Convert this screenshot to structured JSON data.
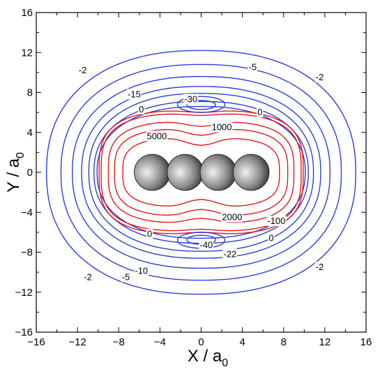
{
  "chart_data": {
    "type": "contour",
    "title": "",
    "xlabel": "X / a",
    "xlabel_sub": "0",
    "ylabel": "Y / a",
    "ylabel_sub": "0",
    "xlim": [
      -16,
      16
    ],
    "ylim": [
      -16,
      16
    ],
    "xticks": [
      "−16",
      "−12",
      "−8",
      "−4",
      "0",
      "4",
      "8",
      "12",
      "16"
    ],
    "xtick_values": [
      -16,
      -12,
      -8,
      -4,
      0,
      4,
      8,
      12,
      16
    ],
    "yticks": [
      "16",
      "12",
      "8",
      "4",
      "0",
      "−4",
      "−8",
      "−12",
      "−16"
    ],
    "ytick_values": [
      16,
      12,
      8,
      4,
      0,
      -4,
      -8,
      -12,
      -16
    ],
    "grid": false,
    "colors": {
      "negative": "#2a3fd6",
      "positive": "#e01818"
    },
    "contours_negative": [
      {
        "a": 15.0,
        "b": 12.2
      },
      {
        "a": 13.6,
        "b": 10.8
      },
      {
        "a": 12.5,
        "b": 9.6
      },
      {
        "a": 11.6,
        "b": 8.6
      },
      {
        "a": 10.9,
        "b": 7.9
      },
      {
        "a": 10.4,
        "b": 7.1
      },
      {
        "a": 10.1,
        "b": 6.6
      }
    ],
    "contours_positive": [
      {
        "a": 9.9,
        "b": 6.2,
        "dip": 0.2
      },
      {
        "a": 9.7,
        "b": 5.9,
        "dip": 0.2
      },
      {
        "a": 9.0,
        "b": 5.1,
        "dip": 0.5
      },
      {
        "a": 8.4,
        "b": 4.4,
        "dip": 0.7
      },
      {
        "a": 7.6,
        "b": 3.5,
        "dip": 0.8
      }
    ],
    "lobes": [
      {
        "cx": 0,
        "cy": 6.8,
        "rx": 2.3,
        "ry": 0.8
      },
      {
        "cx": 0,
        "cy": 6.75,
        "rx": 1.4,
        "ry": 0.45
      },
      {
        "cx": 0,
        "cy": -6.8,
        "rx": 2.3,
        "ry": 0.8
      },
      {
        "cx": 0,
        "cy": -6.75,
        "rx": 1.4,
        "ry": 0.45
      }
    ],
    "contour_labels": [
      {
        "text": "-2",
        "x": -11.5,
        "y": 10.2
      },
      {
        "text": "-5",
        "x": 5.0,
        "y": 10.5
      },
      {
        "text": "-2",
        "x": 11.5,
        "y": 9.5
      },
      {
        "text": "-15",
        "x": -6.5,
        "y": 7.8
      },
      {
        "text": "-30",
        "x": -1.0,
        "y": 7.3
      },
      {
        "text": "0",
        "x": -5.8,
        "y": 6.3
      },
      {
        "text": "0",
        "x": 5.7,
        "y": 6.0
      },
      {
        "text": "1000",
        "x": 2.0,
        "y": 4.5
      },
      {
        "text": "5000",
        "x": -4.3,
        "y": 3.6
      },
      {
        "text": "2000",
        "x": 3.0,
        "y": -4.5
      },
      {
        "text": "-100",
        "x": 7.3,
        "y": -4.9
      },
      {
        "text": "0",
        "x": 6.8,
        "y": -6.6
      },
      {
        "text": "0",
        "x": -5.0,
        "y": -6.2
      },
      {
        "text": "-40",
        "x": 0.5,
        "y": -7.3
      },
      {
        "text": "-22",
        "x": 2.8,
        "y": -8.2
      },
      {
        "text": "-10",
        "x": -5.8,
        "y": -9.9
      },
      {
        "text": "-5",
        "x": -7.3,
        "y": -10.5
      },
      {
        "text": "-2",
        "x": -11.0,
        "y": -10.5
      },
      {
        "text": "-2",
        "x": 11.5,
        "y": -9.5
      }
    ],
    "molecule": {
      "atoms_x": [
        -4.75,
        -1.55,
        1.65,
        4.85
      ],
      "atom_y": 0,
      "atom_radius": 1.75,
      "bond_y": -0.05
    }
  }
}
